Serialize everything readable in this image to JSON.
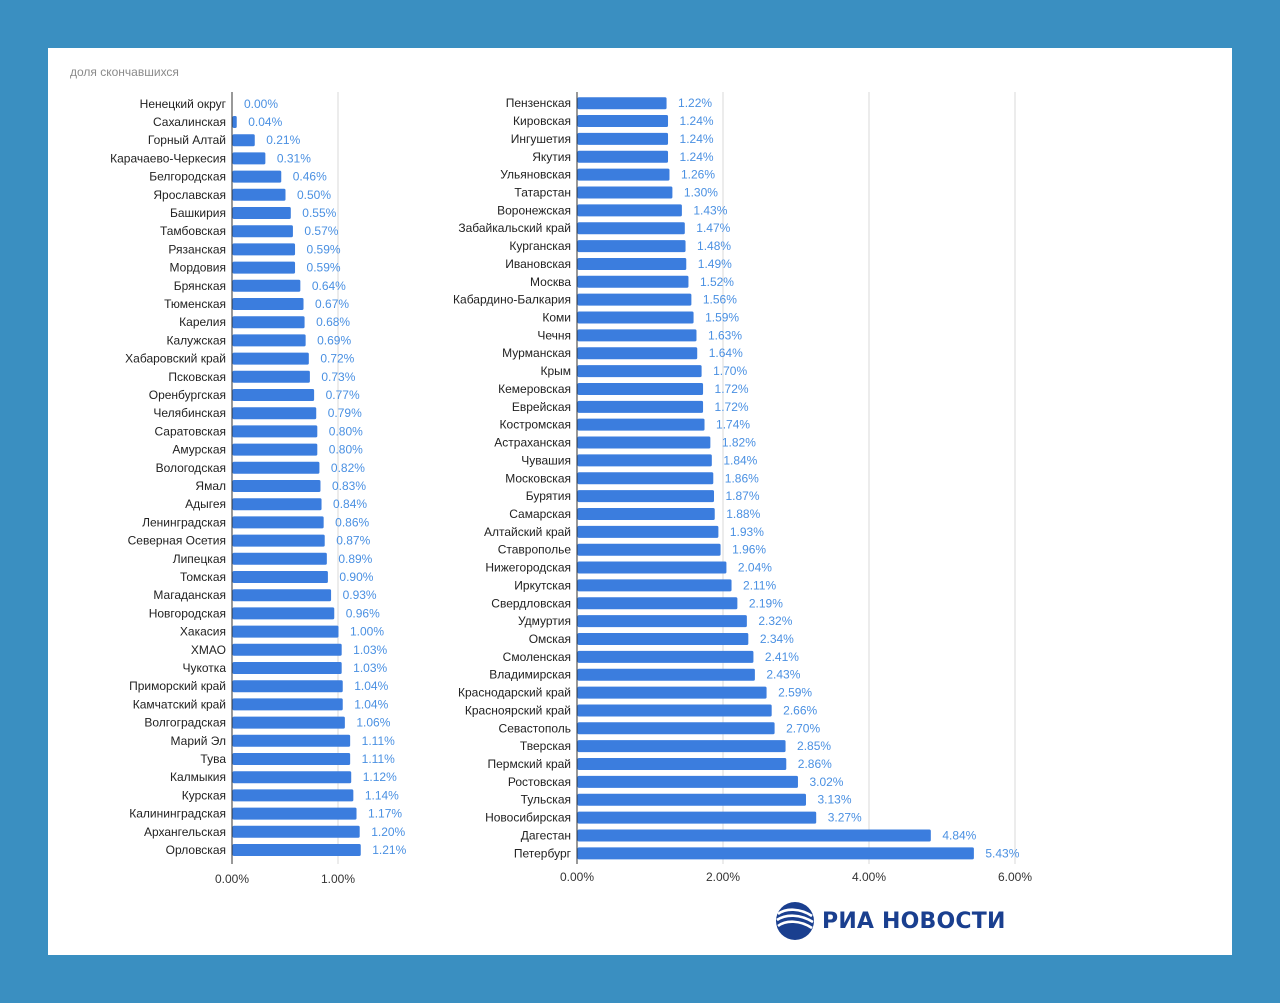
{
  "subtitle": "доля скончавшихся",
  "logo": {
    "text": "РИА НОВОСТИ"
  },
  "colors": {
    "bar": "#3b7dde",
    "value_label": "#4a90e2",
    "background": "#3a8fc1",
    "logo": "#1a3f8f"
  },
  "chart_data": [
    {
      "type": "bar",
      "orientation": "horizontal",
      "xlim": [
        0,
        1.2
      ],
      "x_ticks": [
        "0.00%",
        "1.00%"
      ],
      "x_tick_values": [
        0,
        1
      ],
      "grid": true,
      "categories": [
        "Ненецкий округ",
        "Сахалинская",
        "Горный Алтай",
        "Карачаево-Черкесия",
        "Белгородская",
        "Ярославская",
        "Башкирия",
        "Тамбовская",
        "Рязанская",
        "Мордовия",
        "Брянская",
        "Тюменская",
        "Карелия",
        "Калужская",
        "Хабаровский край",
        "Псковская",
        "Оренбургская",
        "Челябинская",
        "Саратовская",
        "Амурская",
        "Вологодская",
        "Ямал",
        "Адыгея",
        "Ленинградская",
        "Северная Осетия",
        "Липецкая",
        "Томская",
        "Магаданская",
        "Новгородская",
        "Хакасия",
        "ХМАО",
        "Чукотка",
        "Приморский край",
        "Камчатский край",
        "Волгоградская",
        "Марий Эл",
        "Тува",
        "Калмыкия",
        "Курская",
        "Калининградская",
        "Архангельская",
        "Орловская"
      ],
      "values": [
        0.0,
        0.04,
        0.21,
        0.31,
        0.46,
        0.5,
        0.55,
        0.57,
        0.59,
        0.59,
        0.64,
        0.67,
        0.68,
        0.69,
        0.72,
        0.73,
        0.77,
        0.79,
        0.8,
        0.8,
        0.82,
        0.83,
        0.84,
        0.86,
        0.87,
        0.89,
        0.9,
        0.93,
        0.96,
        1.0,
        1.03,
        1.03,
        1.04,
        1.04,
        1.06,
        1.11,
        1.11,
        1.12,
        1.14,
        1.17,
        1.2,
        1.21
      ],
      "value_labels": [
        "0.00%",
        "0.04%",
        "0.21%",
        "0.31%",
        "0.46%",
        "0.50%",
        "0.55%",
        "0.57%",
        "0.59%",
        "0.59%",
        "0.64%",
        "0.67%",
        "0.68%",
        "0.69%",
        "0.72%",
        "0.73%",
        "0.77%",
        "0.79%",
        "0.80%",
        "0.80%",
        "0.82%",
        "0.83%",
        "0.84%",
        "0.86%",
        "0.87%",
        "0.89%",
        "0.90%",
        "0.93%",
        "0.96%",
        "1.00%",
        "1.03%",
        "1.03%",
        "1.04%",
        "1.04%",
        "1.06%",
        "1.11%",
        "1.11%",
        "1.12%",
        "1.14%",
        "1.17%",
        "1.20%",
        "1.21%"
      ]
    },
    {
      "type": "bar",
      "orientation": "horizontal",
      "xlim": [
        0,
        6
      ],
      "x_ticks": [
        "0.00%",
        "2.00%",
        "4.00%",
        "6.00%"
      ],
      "x_tick_values": [
        0,
        2,
        4,
        6
      ],
      "grid": true,
      "categories": [
        "Пензенская",
        "Кировская",
        "Ингушетия",
        "Якутия",
        "Ульяновская",
        "Татарстан",
        "Воронежская",
        "Забайкальский край",
        "Курганская",
        "Ивановская",
        "Москва",
        "Кабардино-Балкария",
        "Коми",
        "Чечня",
        "Мурманская",
        "Крым",
        "Кемеровская",
        "Еврейская",
        "Костромская",
        "Астраханская",
        "Чувашия",
        "Московская",
        "Бурятия",
        "Самарская",
        "Алтайский край",
        "Ставрополье",
        "Нижегородская",
        "Иркутская",
        "Свердловская",
        "Удмуртия",
        "Омская",
        "Смоленская",
        "Владимирская",
        "Краснодарский край",
        "Красноярский край",
        "Севастополь",
        "Тверская",
        "Пермский край",
        "Ростовская",
        "Тульская",
        "Новосибирская",
        "Дагестан",
        "Петербург"
      ],
      "values": [
        1.22,
        1.24,
        1.24,
        1.24,
        1.26,
        1.3,
        1.43,
        1.47,
        1.48,
        1.49,
        1.52,
        1.56,
        1.59,
        1.63,
        1.64,
        1.7,
        1.72,
        1.72,
        1.74,
        1.82,
        1.84,
        1.86,
        1.87,
        1.88,
        1.93,
        1.96,
        2.04,
        2.11,
        2.19,
        2.32,
        2.34,
        2.41,
        2.43,
        2.59,
        2.66,
        2.7,
        2.85,
        2.86,
        3.02,
        3.13,
        3.27,
        4.84,
        5.43
      ],
      "value_labels": [
        "1.22%",
        "1.24%",
        "1.24%",
        "1.24%",
        "1.26%",
        "1.30%",
        "1.43%",
        "1.47%",
        "1.48%",
        "1.49%",
        "1.52%",
        "1.56%",
        "1.59%",
        "1.63%",
        "1.64%",
        "1.70%",
        "1.72%",
        "1.72%",
        "1.74%",
        "1.82%",
        "1.84%",
        "1.86%",
        "1.87%",
        "1.88%",
        "1.93%",
        "1.96%",
        "2.04%",
        "2.11%",
        "2.19%",
        "2.32%",
        "2.34%",
        "2.41%",
        "2.43%",
        "2.59%",
        "2.66%",
        "2.70%",
        "2.85%",
        "2.86%",
        "3.02%",
        "3.13%",
        "3.27%",
        "4.84%",
        "5.43%"
      ]
    }
  ]
}
